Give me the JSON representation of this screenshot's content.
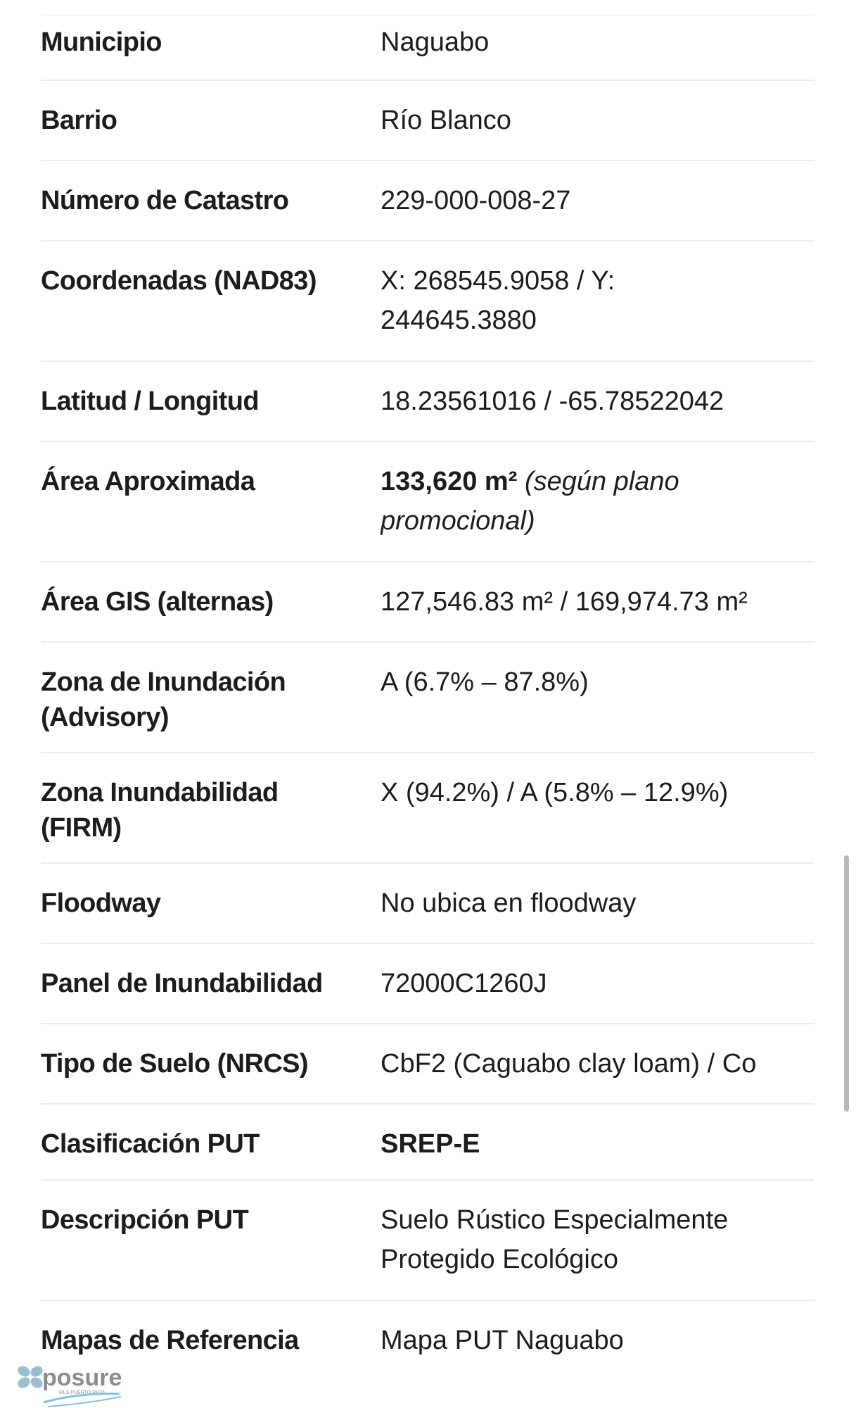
{
  "rows": [
    {
      "label": "Municipio",
      "value": "Naguabo"
    },
    {
      "label": "Barrio",
      "value": "Río Blanco"
    },
    {
      "label": "Número de Catastro",
      "value": "229-000-008-27"
    },
    {
      "label": "Coordenadas (NAD83)",
      "value": "X: 268545.9058 / Y: 244645.3880"
    },
    {
      "label": "Latitud / Longitud",
      "value": "18.23561016 / -65.78522042"
    },
    {
      "label": "Área Aproximada",
      "value_bold": "133,620 m²",
      "value_italic": "(según plano promocional)"
    },
    {
      "label": "Área GIS (alternas)",
      "value": "127,546.83 m² / 169,974.73 m²"
    },
    {
      "label": "Zona de Inundación (Advisory)",
      "value": "A (6.7% – 87.8%)"
    },
    {
      "label": "Zona Inundabilidad (FIRM)",
      "value": "X (94.2%) / A (5.8% – 12.9%)"
    },
    {
      "label": "Floodway",
      "value": "No ubica en floodway"
    },
    {
      "label": "Panel de Inundabilidad",
      "value": "72000C1260J"
    },
    {
      "label": "Tipo de Suelo (NRCS)",
      "value": "CbF2 (Caguabo clay loam) / Co"
    },
    {
      "label": "Clasificación PUT",
      "value": "SREP-E"
    },
    {
      "label": "Descripción PUT",
      "value": "Suelo Rústico Especialmente Protegido Ecológico"
    },
    {
      "label": "Mapas de Referencia",
      "value": "Mapa PUT Naguabo"
    }
  ],
  "watermark": {
    "brand": "xposure",
    "sub": "MLS PUERTO RICO",
    "colors": {
      "gray": "#8a8d91",
      "blue": "#7cc6dc"
    }
  }
}
